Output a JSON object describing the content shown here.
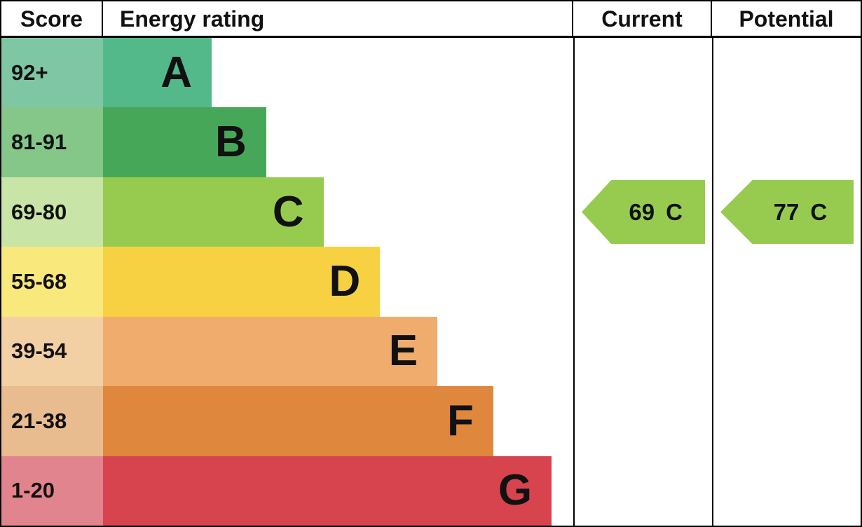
{
  "header": {
    "score": "Score",
    "energy_rating": "Energy rating",
    "current": "Current",
    "potential": "Potential"
  },
  "chart_data": {
    "type": "bar",
    "title": "EPC energy rating chart",
    "orientation": "horizontal",
    "categories": [
      "A",
      "B",
      "C",
      "D",
      "E",
      "F",
      "G"
    ],
    "score_ranges": [
      "92+",
      "81-91",
      "69-80",
      "55-68",
      "39-54",
      "21-38",
      "1-20"
    ],
    "bands": [
      {
        "score": "92+",
        "letter": "A",
        "color": "#53b98b",
        "tint": "#7fc6a5",
        "width_pct": 23.1
      },
      {
        "score": "81-91",
        "letter": "B",
        "color": "#47a758",
        "tint": "#84c788",
        "width_pct": 34.7
      },
      {
        "score": "69-80",
        "letter": "C",
        "color": "#97cb50",
        "tint": "#c8e4a6",
        "width_pct": 46.9
      },
      {
        "score": "55-68",
        "letter": "D",
        "color": "#f7d142",
        "tint": "#f9e87c",
        "width_pct": 58.9
      },
      {
        "score": "39-54",
        "letter": "E",
        "color": "#f0ac6c",
        "tint": "#f3cfa4",
        "width_pct": 71.1
      },
      {
        "score": "21-38",
        "letter": "F",
        "color": "#df873c",
        "tint": "#e9bc90",
        "width_pct": 83.0
      },
      {
        "score": "1-20",
        "letter": "G",
        "color": "#d7444e",
        "tint": "#e2848e",
        "width_pct": 95.4
      }
    ],
    "current": {
      "value": "69",
      "letter": "C",
      "band_index": 2,
      "arrow_color": "#97cb50"
    },
    "potential": {
      "value": "77",
      "letter": "C",
      "band_index": 2,
      "arrow_color": "#97cb50"
    },
    "legend_position": "none",
    "grid": false
  }
}
